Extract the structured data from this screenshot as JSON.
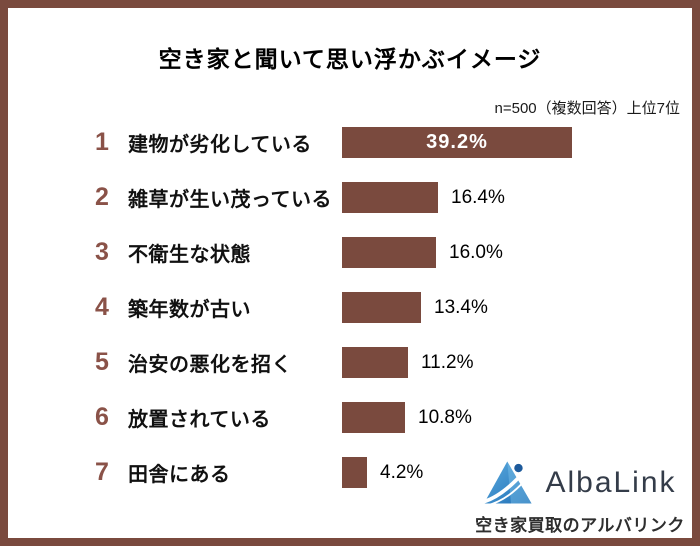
{
  "frame": {
    "border_color": "#7a4a3e",
    "background_color": "#ffffff"
  },
  "header": {
    "title": "空き家と聞いて思い浮かぶイメージ",
    "note": "n=500（複数回答）上位7位"
  },
  "chart_data": {
    "type": "bar",
    "orientation": "horizontal",
    "title": "空き家と聞いて思い浮かぶイメージ",
    "note": "n=500（複数回答）上位7位",
    "unit": "%",
    "bar_color": "#7a4a3e",
    "value_label_inside_first_bar": true,
    "categories": [
      "建物が劣化している",
      "雑草が生い茂っている",
      "不衛生な状態",
      "築年数が古い",
      "治安の悪化を招く",
      "放置されている",
      "田舎にある"
    ],
    "values": [
      39.2,
      16.4,
      16.0,
      13.4,
      11.2,
      10.8,
      4.2
    ],
    "items": [
      {
        "rank": "1",
        "label": "建物が劣化している",
        "value": 39.2,
        "value_label": "39.2%"
      },
      {
        "rank": "2",
        "label": "雑草が生い茂っている",
        "value": 16.4,
        "value_label": "16.4%"
      },
      {
        "rank": "3",
        "label": "不衛生な状態",
        "value": 16.0,
        "value_label": "16.0%"
      },
      {
        "rank": "4",
        "label": "築年数が古い",
        "value": 13.4,
        "value_label": "13.4%"
      },
      {
        "rank": "5",
        "label": "治安の悪化を招く",
        "value": 11.2,
        "value_label": "11.2%"
      },
      {
        "rank": "6",
        "label": "放置されている",
        "value": 10.8,
        "value_label": "10.8%"
      },
      {
        "rank": "7",
        "label": "田舎にある",
        "value": 4.2,
        "value_label": "4.2%"
      }
    ]
  },
  "logo": {
    "wordmark": "AlbaLink",
    "tagline": "空き家買取のアルバリンク",
    "icon": "mountain-triangle-swoosh",
    "colors": {
      "icon_light_blue": "#5baade",
      "icon_dark_blue": "#1f6cb3",
      "icon_dot_blue": "#1d5a9b",
      "wordmark_text": "#343c49"
    }
  }
}
